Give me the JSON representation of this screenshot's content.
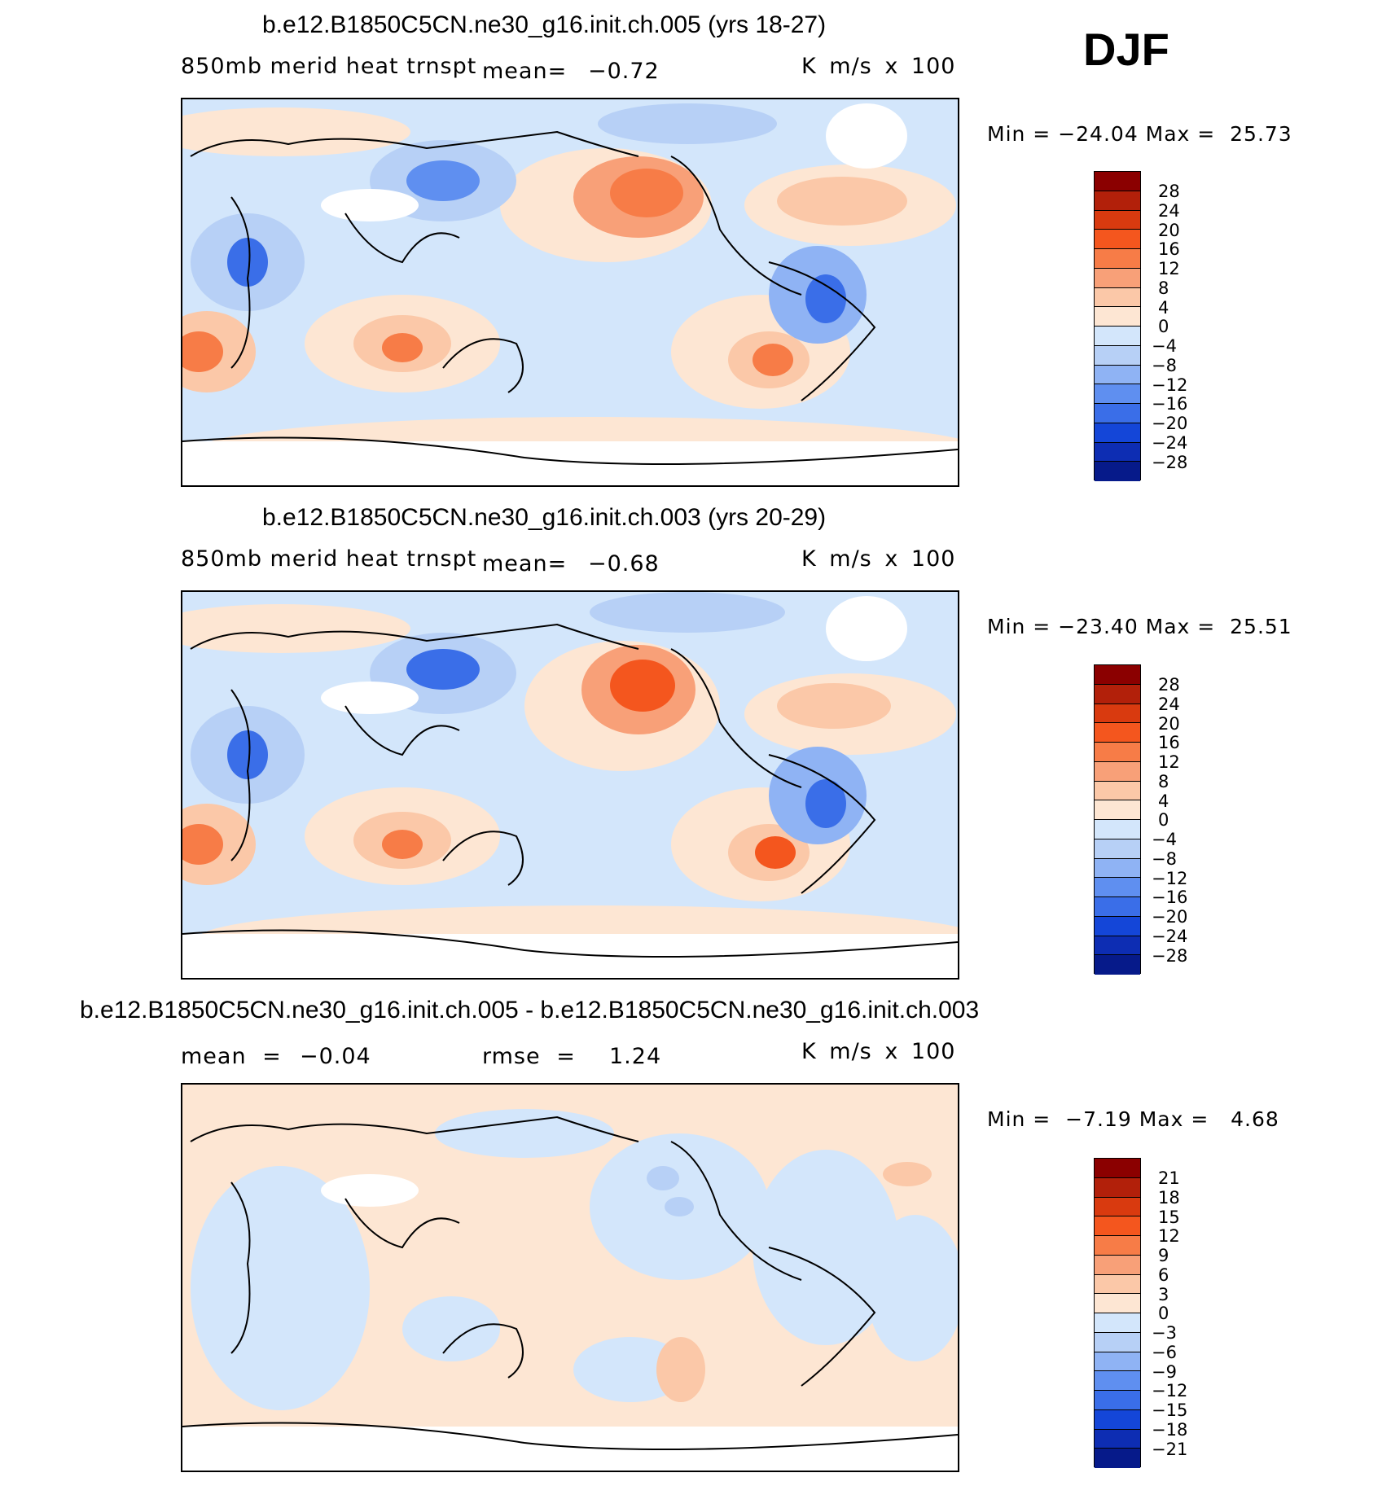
{
  "season": "DJF",
  "units": "K m/s x 100",
  "panels": [
    {
      "title": "b.e12.B1850C5CN.ne30_g16.init.ch.005 (yrs 18-27)",
      "variable": "850mb merid heat trnspt",
      "mean_label": "mean=",
      "mean_value": "−0.72",
      "units": "K m/s x 100",
      "minmax": "Min = −24.04 Max =  25.73",
      "levels": [
        "28",
        "24",
        "20",
        "16",
        "12",
        "8",
        "4",
        "0",
        "−4",
        "−8",
        "−12",
        "−16",
        "−20",
        "−24",
        "−28"
      ]
    },
    {
      "title": "b.e12.B1850C5CN.ne30_g16.init.ch.003 (yrs 20-29)",
      "variable": "850mb merid heat trnspt",
      "mean_label": "mean=",
      "mean_value": "−0.68",
      "units": "K m/s x 100",
      "minmax": "Min = −23.40 Max =  25.51",
      "levels": [
        "28",
        "24",
        "20",
        "16",
        "12",
        "8",
        "4",
        "0",
        "−4",
        "−8",
        "−12",
        "−16",
        "−20",
        "−24",
        "−28"
      ]
    },
    {
      "title": "b.e12.B1850C5CN.ne30_g16.init.ch.005 - b.e12.B1850C5CN.ne30_g16.init.ch.003",
      "mean_label": "mean =",
      "mean_value": "−0.04",
      "rmse_label": "rmse =",
      "rmse_value": "1.24",
      "units": "K m/s x 100",
      "minmax": "Min =  −7.19 Max =   4.68",
      "levels": [
        "21",
        "18",
        "15",
        "12",
        "9",
        "6",
        "3",
        "0",
        "−3",
        "−6",
        "−9",
        "−12",
        "−15",
        "−18",
        "−21"
      ]
    }
  ],
  "colorbar_colors": [
    "#8b0000",
    "#b2200a",
    "#d93a0f",
    "#f4561e",
    "#f77c47",
    "#f8a078",
    "#fbc8a8",
    "#fde6d3",
    "#d3e6fb",
    "#b7d0f6",
    "#8fb3f4",
    "#5f8ff0",
    "#3a6ee8",
    "#1446d8",
    "#0d2db3",
    "#061a8a"
  ]
}
